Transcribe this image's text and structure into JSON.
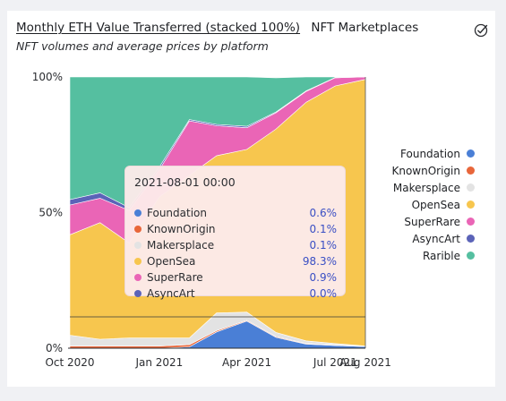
{
  "header": {
    "title": "Monthly ETH Value Transferred (stacked 100%)",
    "source": "NFT Marketplaces",
    "subtitle": "NFT volumes and average prices by platform",
    "check_icon": "circle-check-icon"
  },
  "chart_data": {
    "type": "area",
    "stacked": "percent",
    "x": [
      "2020-10-01",
      "2020-11-01",
      "2020-12-01",
      "2021-01-01",
      "2021-02-01",
      "2021-03-01",
      "2021-04-01",
      "2021-05-01",
      "2021-06-01",
      "2021-07-01",
      "2021-08-01"
    ],
    "x_ticks": [
      {
        "x": "2020-10-01",
        "label": "Oct 2020"
      },
      {
        "x": "2021-01-01",
        "label": "Jan 2021"
      },
      {
        "x": "2021-04-01",
        "label": "Apr 2021"
      },
      {
        "x": "2021-07-01",
        "label": "Jul 2021"
      },
      {
        "x": "2021-08-01",
        "label": "Aug 2021"
      }
    ],
    "y_ticks": [
      "0%",
      "50%",
      "100%"
    ],
    "ylim": [
      0,
      100
    ],
    "legend_position": "right",
    "series": [
      {
        "name": "Foundation",
        "color": "#4a7fd6",
        "values": [
          0,
          0,
          0,
          0,
          0.5,
          6,
          10,
          4,
          1.5,
          1,
          0.6
        ]
      },
      {
        "name": "KnownOrigin",
        "color": "#e8663a",
        "values": [
          0.8,
          0.8,
          0.8,
          0.8,
          0.8,
          0.5,
          0.3,
          0.3,
          0.2,
          0.2,
          0.1
        ]
      },
      {
        "name": "Makersplace",
        "color": "#e3e3e3",
        "values": [
          4,
          2.5,
          3,
          3,
          2.5,
          6.5,
          3,
          1.5,
          1,
          0.5,
          0.1
        ]
      },
      {
        "name": "OpenSea",
        "color": "#f7c64e",
        "values": [
          37,
          43,
          35,
          52,
          60,
          58,
          60,
          75,
          88,
          95,
          98.3
        ]
      },
      {
        "name": "SuperRare",
        "color": "#ea65b6",
        "values": [
          11,
          9,
          12,
          10,
          20,
          11,
          8,
          6,
          4,
          3,
          0.9
        ]
      },
      {
        "name": "AsyncArt",
        "color": "#5b63b8",
        "values": [
          2,
          2,
          1,
          1,
          0.5,
          0.5,
          0.5,
          0.3,
          0.2,
          0.1,
          0
        ]
      },
      {
        "name": "Rarible",
        "color": "#55bfa0",
        "values": [
          45.2,
          42.7,
          48.2,
          33.2,
          15.7,
          17.5,
          18.2,
          12.6,
          5.1,
          0.2,
          0
        ]
      }
    ]
  },
  "legend": [
    {
      "label": "Foundation",
      "color": "#4a7fd6"
    },
    {
      "label": "KnownOrigin",
      "color": "#e8663a"
    },
    {
      "label": "Makersplace",
      "color": "#e3e3e3"
    },
    {
      "label": "OpenSea",
      "color": "#f7c64e"
    },
    {
      "label": "SuperRare",
      "color": "#ea65b6"
    },
    {
      "label": "AsyncArt",
      "color": "#5b63b8"
    },
    {
      "label": "Rarible",
      "color": "#55bfa0"
    }
  ],
  "tooltip": {
    "title": "2021-08-01 00:00",
    "rows": [
      {
        "label": "Foundation",
        "value": "0.6%",
        "color": "#4a7fd6"
      },
      {
        "label": "KnownOrigin",
        "value": "0.1%",
        "color": "#e8663a"
      },
      {
        "label": "Makersplace",
        "value": "0.1%",
        "color": "#e3e3e3"
      },
      {
        "label": "OpenSea",
        "value": "98.3%",
        "color": "#f7c64e"
      },
      {
        "label": "SuperRare",
        "value": "0.9%",
        "color": "#ea65b6"
      },
      {
        "label": "AsyncArt",
        "value": "0.0%",
        "color": "#5b63b8"
      }
    ]
  }
}
